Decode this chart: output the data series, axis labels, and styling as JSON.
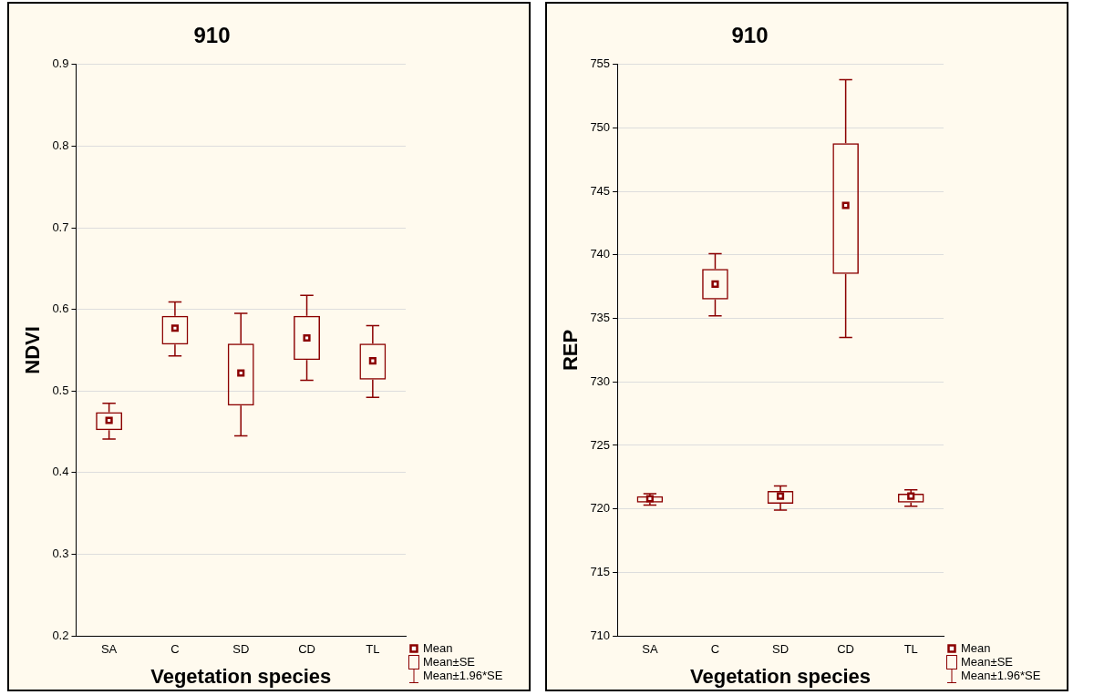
{
  "chart_data": [
    {
      "type": "box",
      "title": "910",
      "xlabel": "Vegetation species",
      "ylabel": "NDVI",
      "categories": [
        "SA",
        "C",
        "SD",
        "CD",
        "TL"
      ],
      "color": "#8b0000",
      "ylim": [
        0.2,
        0.9
      ],
      "yticks": [
        0.2,
        0.3,
        0.4,
        0.5,
        0.6,
        0.7,
        0.8,
        0.9
      ],
      "grid": "y",
      "marker": "square",
      "boxes": [
        {
          "low": 0.441,
          "q1": 0.452,
          "q3": 0.474,
          "high": 0.485,
          "mean": 0.464
        },
        {
          "low": 0.543,
          "q1": 0.557,
          "q3": 0.592,
          "high": 0.609,
          "mean": 0.577
        },
        {
          "low": 0.445,
          "q1": 0.482,
          "q3": 0.558,
          "high": 0.595,
          "mean": 0.522
        },
        {
          "low": 0.513,
          "q1": 0.538,
          "q3": 0.592,
          "high": 0.617,
          "mean": 0.565
        },
        {
          "low": 0.492,
          "q1": 0.514,
          "q3": 0.558,
          "high": 0.58,
          "mean": 0.537
        }
      ],
      "annotations": [
        "Mean",
        "Mean±SE",
        "Mean±1.96*SE"
      ]
    },
    {
      "type": "box",
      "title": "910",
      "xlabel": "Vegetation species",
      "ylabel": "REP",
      "categories": [
        "SA",
        "C",
        "SD",
        "CD",
        "TL"
      ],
      "color": "#8b0000",
      "ylim": [
        710,
        755
      ],
      "yticks": [
        710,
        715,
        720,
        725,
        730,
        735,
        740,
        745,
        750,
        755
      ],
      "grid": "y",
      "marker": "square",
      "boxes": [
        {
          "low": 720.3,
          "q1": 720.5,
          "q3": 721,
          "high": 721.2,
          "mean": 720.8
        },
        {
          "low": 735.2,
          "q1": 736.5,
          "q3": 738.9,
          "high": 740.1,
          "mean": 737.7
        },
        {
          "low": 719.9,
          "q1": 720.4,
          "q3": 721.4,
          "high": 721.8,
          "mean": 721
        },
        {
          "low": 733.5,
          "q1": 738.5,
          "q3": 748.8,
          "high": 753.8,
          "mean": 743.9
        },
        {
          "low": 720.2,
          "q1": 720.5,
          "q3": 721.2,
          "high": 721.5,
          "mean": 721
        }
      ],
      "annotations": [
        "Mean",
        "Mean±SE",
        "Mean±1.96*SE"
      ]
    }
  ]
}
